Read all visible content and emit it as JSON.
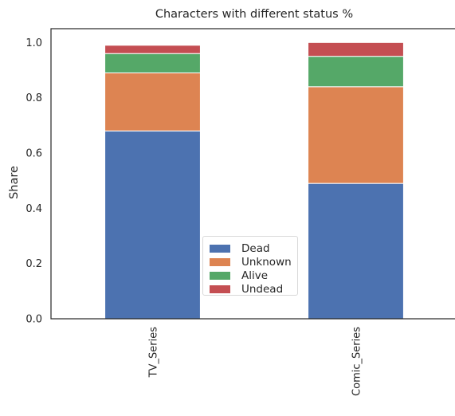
{
  "chart_data": {
    "type": "bar",
    "stacked": true,
    "title": "Characters with different status %",
    "xlabel": "",
    "ylabel": "Share",
    "categories": [
      "TV_Series",
      "Comic_Series"
    ],
    "series": [
      {
        "name": "Dead",
        "color": "#4c72b0",
        "values": [
          0.68,
          0.49
        ]
      },
      {
        "name": "Unknown",
        "color": "#dd8452",
        "values": [
          0.21,
          0.35
        ]
      },
      {
        "name": "Alive",
        "color": "#55a868",
        "values": [
          0.07,
          0.11
        ]
      },
      {
        "name": "Undead",
        "color": "#c44e52",
        "values": [
          0.03,
          0.05
        ]
      }
    ],
    "ylim": [
      0,
      1.05
    ],
    "yticks": [
      "0.0",
      "0.2",
      "0.4",
      "0.6",
      "0.8",
      "1.0"
    ],
    "grid": false,
    "legend_position": "lower-center"
  }
}
